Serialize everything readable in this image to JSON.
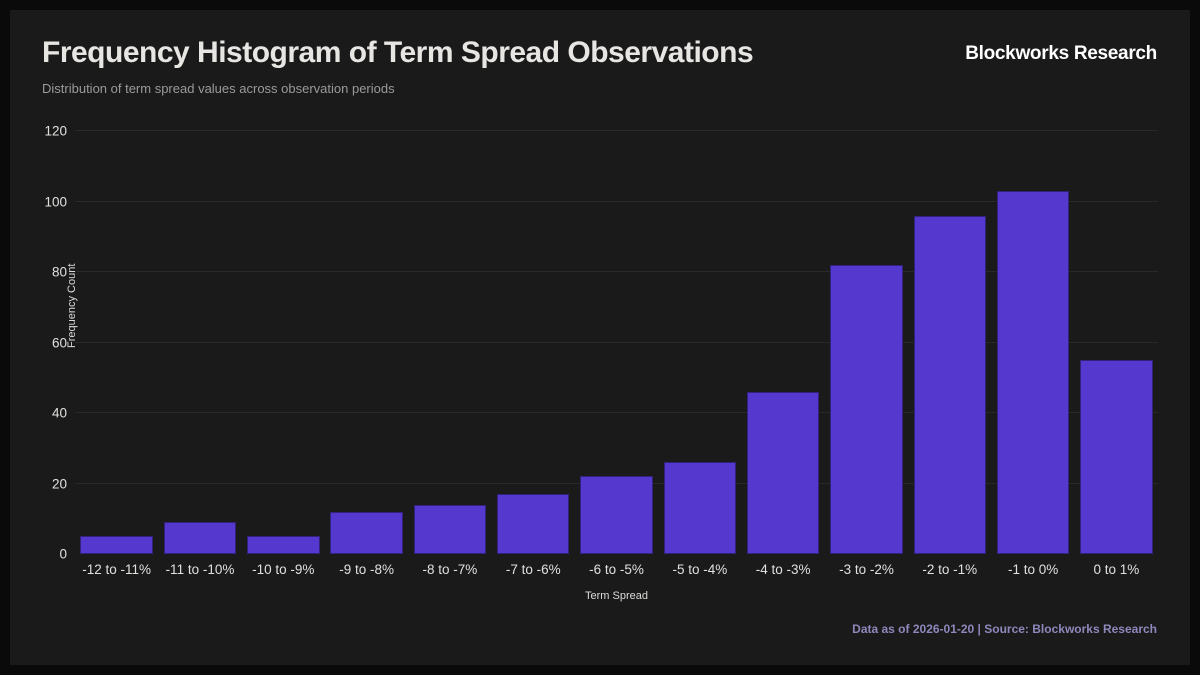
{
  "header": {
    "title": "Frequency Histogram of Term Spread Observations",
    "subtitle": "Distribution of term spread values across observation periods",
    "brand": "Blockworks Research"
  },
  "footer": {
    "text": "Data as of 2026-01-20 | Source: Blockworks Research"
  },
  "colors": {
    "background": "#1a1a1b",
    "frame": "#0a0a0a",
    "bar": "#5538ce",
    "grid": "#29292c",
    "title_text": "#e8e6e3",
    "subtitle_text": "#9c9a98",
    "tick_text": "#e2e0dd",
    "footer_text": "#8e88bb"
  },
  "chart_data": {
    "type": "bar",
    "title": "Frequency Histogram of Term Spread Observations",
    "subtitle": "Distribution of term spread values across observation periods",
    "categories": [
      "-12 to -11%",
      "-11 to -10%",
      "-10 to -9%",
      "-9 to -8%",
      "-8 to -7%",
      "-7 to -6%",
      "-6 to -5%",
      "-5 to -4%",
      "-4 to -3%",
      "-3 to -2%",
      "-2 to -1%",
      "-1 to 0%",
      "0 to 1%"
    ],
    "values": [
      5,
      9,
      5,
      12,
      14,
      17,
      22,
      26,
      46,
      82,
      96,
      103,
      55
    ],
    "xlabel": "Term Spread",
    "ylabel": "Frequency Count",
    "ylim": [
      0,
      120
    ],
    "yticks": [
      0,
      20,
      40,
      60,
      80,
      100,
      120
    ],
    "grid": "horizontal",
    "legend": "none",
    "bar_color": "#5538ce"
  }
}
